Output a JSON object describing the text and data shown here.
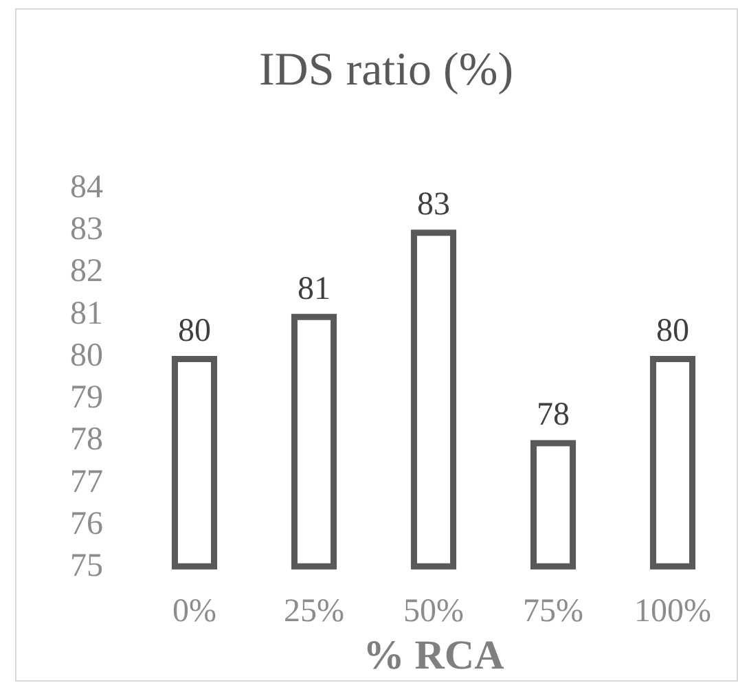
{
  "chart_data": {
    "type": "bar",
    "title": "IDS ratio (%)",
    "xlabel": "% RCA",
    "categories": [
      "0%",
      "25%",
      "50%",
      "75%",
      "100%"
    ],
    "values": [
      80,
      81,
      83,
      78,
      80
    ],
    "color": "#595959",
    "ylim": [
      75,
      84
    ],
    "yticks": [
      75,
      76,
      77,
      78,
      79,
      80,
      81,
      82,
      83,
      84
    ],
    "data_labels": true,
    "grid": false
  }
}
